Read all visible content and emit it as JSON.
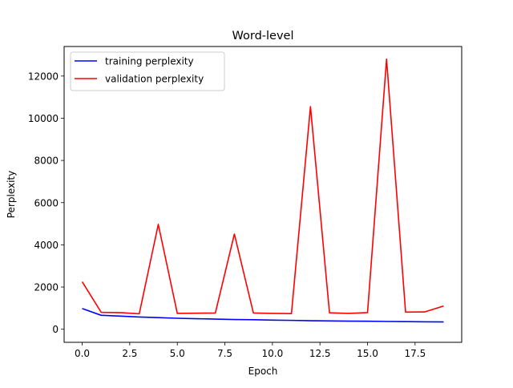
{
  "chart_data": {
    "type": "line",
    "title": "Word-level",
    "xlabel": "Epoch",
    "ylabel": "Perplexity",
    "xlim": [
      -0.95,
      19.95
    ],
    "ylim": [
      -620,
      13400
    ],
    "x_ticks": [
      0,
      2.5,
      5,
      7.5,
      10,
      12.5,
      15,
      17.5
    ],
    "x_tick_labels": [
      "0.0",
      "2.5",
      "5.0",
      "7.5",
      "10.0",
      "12.5",
      "15.0",
      "17.5"
    ],
    "y_ticks": [
      0,
      2000,
      4000,
      6000,
      8000,
      10000,
      12000
    ],
    "y_tick_labels": [
      "0",
      "2000",
      "4000",
      "6000",
      "8000",
      "10000",
      "12000"
    ],
    "grid": false,
    "legend_position": "upper-left",
    "x": [
      0,
      1,
      2,
      3,
      4,
      5,
      6,
      7,
      8,
      9,
      10,
      11,
      12,
      13,
      14,
      15,
      16,
      17,
      18,
      19
    ],
    "series": [
      {
        "name": "training perplexity",
        "color": "#0000ff",
        "values": [
          980,
          660,
          620,
          580,
          550,
          520,
          500,
          480,
          460,
          450,
          430,
          420,
          405,
          395,
          385,
          378,
          368,
          360,
          350,
          345
        ]
      },
      {
        "name": "validation perplexity",
        "color": "#ff0000",
        "values": [
          2250,
          800,
          790,
          730,
          4970,
          750,
          760,
          770,
          4510,
          770,
          750,
          740,
          10550,
          780,
          750,
          790,
          12800,
          810,
          820,
          1100
        ]
      }
    ]
  }
}
